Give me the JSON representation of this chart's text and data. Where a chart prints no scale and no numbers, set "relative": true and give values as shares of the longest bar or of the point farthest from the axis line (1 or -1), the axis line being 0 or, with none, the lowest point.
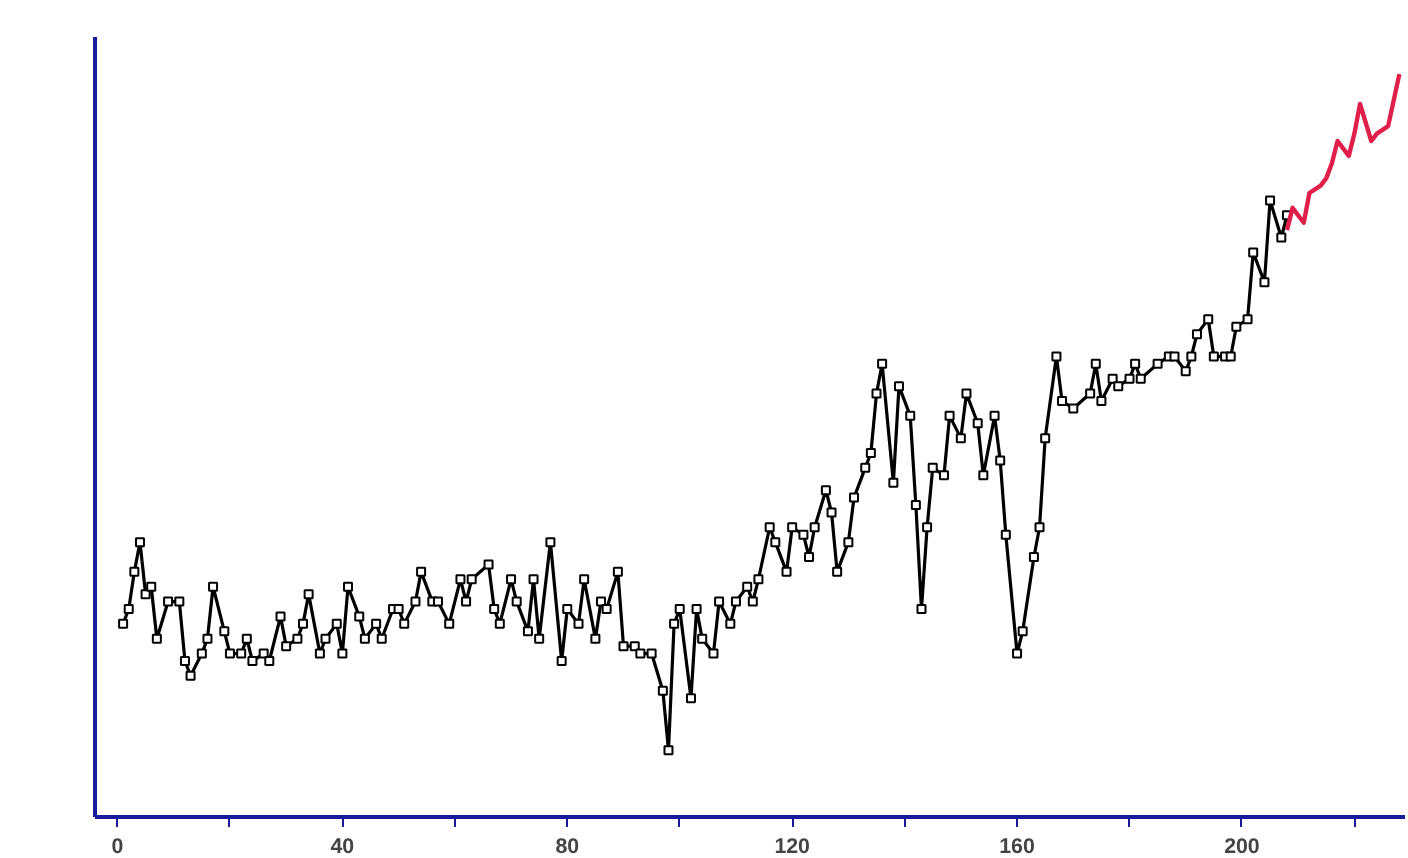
{
  "chart_data": {
    "type": "line",
    "relative": true,
    "marker": "square",
    "grid": false,
    "xlim": [
      -4,
      229
    ],
    "xticks": [
      0,
      {
        "value": 20,
        "label": null
      },
      40,
      {
        "value": 60,
        "label": null
      },
      80,
      {
        "value": 100,
        "label": null
      },
      120,
      {
        "value": 140,
        "label": null
      },
      160,
      {
        "value": 180,
        "label": null
      },
      200,
      {
        "value": 220,
        "label": null
      }
    ],
    "series": [
      {
        "color": "#000000",
        "x": [
          1,
          2,
          3,
          4,
          5,
          6,
          7,
          9,
          11,
          12,
          13,
          15,
          16,
          17,
          19,
          20,
          22,
          23,
          24,
          26,
          27,
          29,
          30,
          32,
          33,
          34,
          36,
          37,
          39,
          40,
          41,
          43,
          44,
          46,
          47,
          49,
          50,
          51,
          53,
          54,
          56,
          57,
          59,
          61,
          62,
          63,
          66,
          67,
          68,
          70,
          71,
          73,
          74,
          75,
          77,
          79,
          80,
          82,
          83,
          85,
          86,
          87,
          89,
          90,
          92,
          93,
          95,
          97,
          98,
          99,
          100,
          102,
          103,
          104,
          106,
          107,
          109,
          110,
          112,
          113,
          114,
          116,
          117,
          119,
          120,
          122,
          123,
          124,
          126,
          127,
          128,
          130,
          131,
          133,
          134,
          135,
          136,
          138,
          139,
          141,
          142,
          143,
          144,
          145,
          147,
          148,
          150,
          151,
          153,
          154,
          156,
          157,
          158,
          160,
          161,
          163,
          164,
          165,
          167,
          168,
          170,
          173,
          174,
          175,
          177,
          178,
          180,
          181,
          182,
          185,
          187,
          188,
          190,
          191,
          192,
          194,
          195,
          197,
          198,
          199,
          201,
          202,
          204,
          205,
          207,
          208
        ],
        "values": [
          0.26,
          0.28,
          0.33,
          0.37,
          0.3,
          0.31,
          0.24,
          0.29,
          0.29,
          0.21,
          0.19,
          0.22,
          0.24,
          0.31,
          0.25,
          0.22,
          0.22,
          0.24,
          0.21,
          0.22,
          0.21,
          0.27,
          0.23,
          0.24,
          0.26,
          0.3,
          0.22,
          0.24,
          0.26,
          0.22,
          0.31,
          0.27,
          0.24,
          0.26,
          0.24,
          0.28,
          0.28,
          0.26,
          0.29,
          0.33,
          0.29,
          0.29,
          0.26,
          0.32,
          0.29,
          0.32,
          0.34,
          0.28,
          0.26,
          0.32,
          0.29,
          0.25,
          0.32,
          0.24,
          0.37,
          0.21,
          0.28,
          0.26,
          0.32,
          0.24,
          0.29,
          0.28,
          0.33,
          0.23,
          0.23,
          0.22,
          0.22,
          0.17,
          0.09,
          0.26,
          0.28,
          0.16,
          0.28,
          0.24,
          0.22,
          0.29,
          0.26,
          0.29,
          0.31,
          0.29,
          0.32,
          0.39,
          0.37,
          0.33,
          0.39,
          0.38,
          0.35,
          0.39,
          0.44,
          0.41,
          0.33,
          0.37,
          0.43,
          0.47,
          0.49,
          0.57,
          0.61,
          0.45,
          0.58,
          0.54,
          0.42,
          0.28,
          0.39,
          0.47,
          0.46,
          0.54,
          0.51,
          0.57,
          0.53,
          0.46,
          0.54,
          0.48,
          0.38,
          0.22,
          0.25,
          0.35,
          0.39,
          0.51,
          0.62,
          0.56,
          0.55,
          0.57,
          0.61,
          0.56,
          0.59,
          0.58,
          0.59,
          0.61,
          0.59,
          0.61,
          0.62,
          0.62,
          0.6,
          0.62,
          0.65,
          0.67,
          0.62,
          0.62,
          0.62,
          0.66,
          0.67,
          0.76,
          0.72,
          0.83,
          0.78,
          0.81
        ]
      },
      {
        "color": "#e0204a",
        "marker": "none",
        "x": [
          208,
          209,
          211,
          212,
          214,
          215,
          216,
          217,
          219,
          220,
          221,
          223,
          224,
          226,
          228
        ],
        "values": [
          0.79,
          0.82,
          0.8,
          0.84,
          0.85,
          0.86,
          0.88,
          0.91,
          0.89,
          0.92,
          0.96,
          0.91,
          0.92,
          0.93,
          1.0
        ]
      }
    ]
  }
}
